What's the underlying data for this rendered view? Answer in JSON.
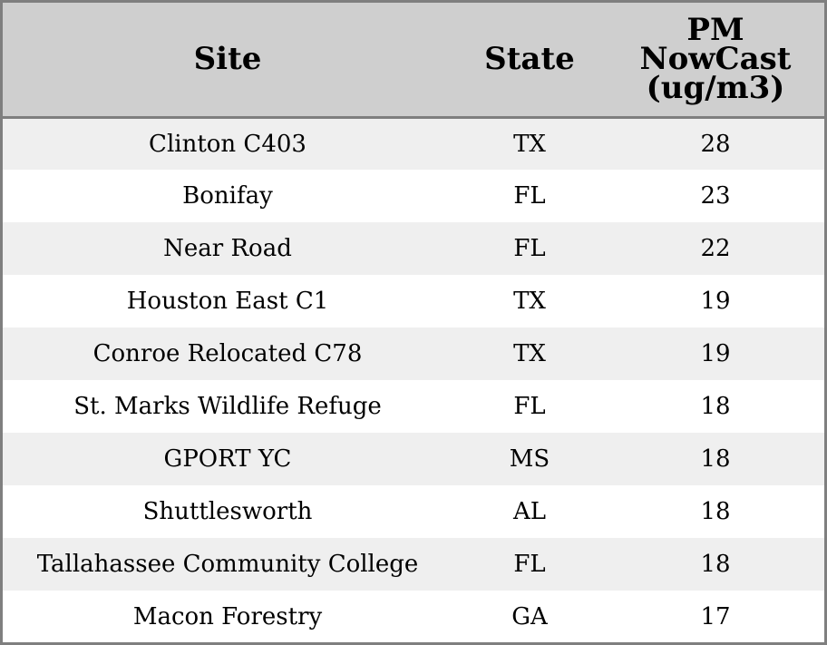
{
  "chart_data": {
    "type": "table",
    "columns": {
      "site": "Site",
      "state": "State",
      "pm_lines": [
        "PM",
        "NowCast",
        "(ug/m3)"
      ]
    },
    "rows": [
      {
        "site": "Clinton C403",
        "state": "TX",
        "pm": "28"
      },
      {
        "site": "Bonifay",
        "state": "FL",
        "pm": "23"
      },
      {
        "site": "Near Road",
        "state": "FL",
        "pm": "22"
      },
      {
        "site": "Houston East C1",
        "state": "TX",
        "pm": "19"
      },
      {
        "site": "Conroe Relocated C78",
        "state": "TX",
        "pm": "19"
      },
      {
        "site": "St. Marks Wildlife Refuge",
        "state": "FL",
        "pm": "18"
      },
      {
        "site": "GPORT YC",
        "state": "MS",
        "pm": "18"
      },
      {
        "site": "Shuttlesworth",
        "state": "AL",
        "pm": "18"
      },
      {
        "site": "Tallahassee Community College",
        "state": "FL",
        "pm": "18"
      },
      {
        "site": "Macon Forestry",
        "state": "GA",
        "pm": "17"
      }
    ],
    "colors": {
      "header_bg": "#cfcfcf",
      "row_alt_bg": "#efefef",
      "row_bg": "#ffffff",
      "border": "#7f7f7f"
    }
  }
}
